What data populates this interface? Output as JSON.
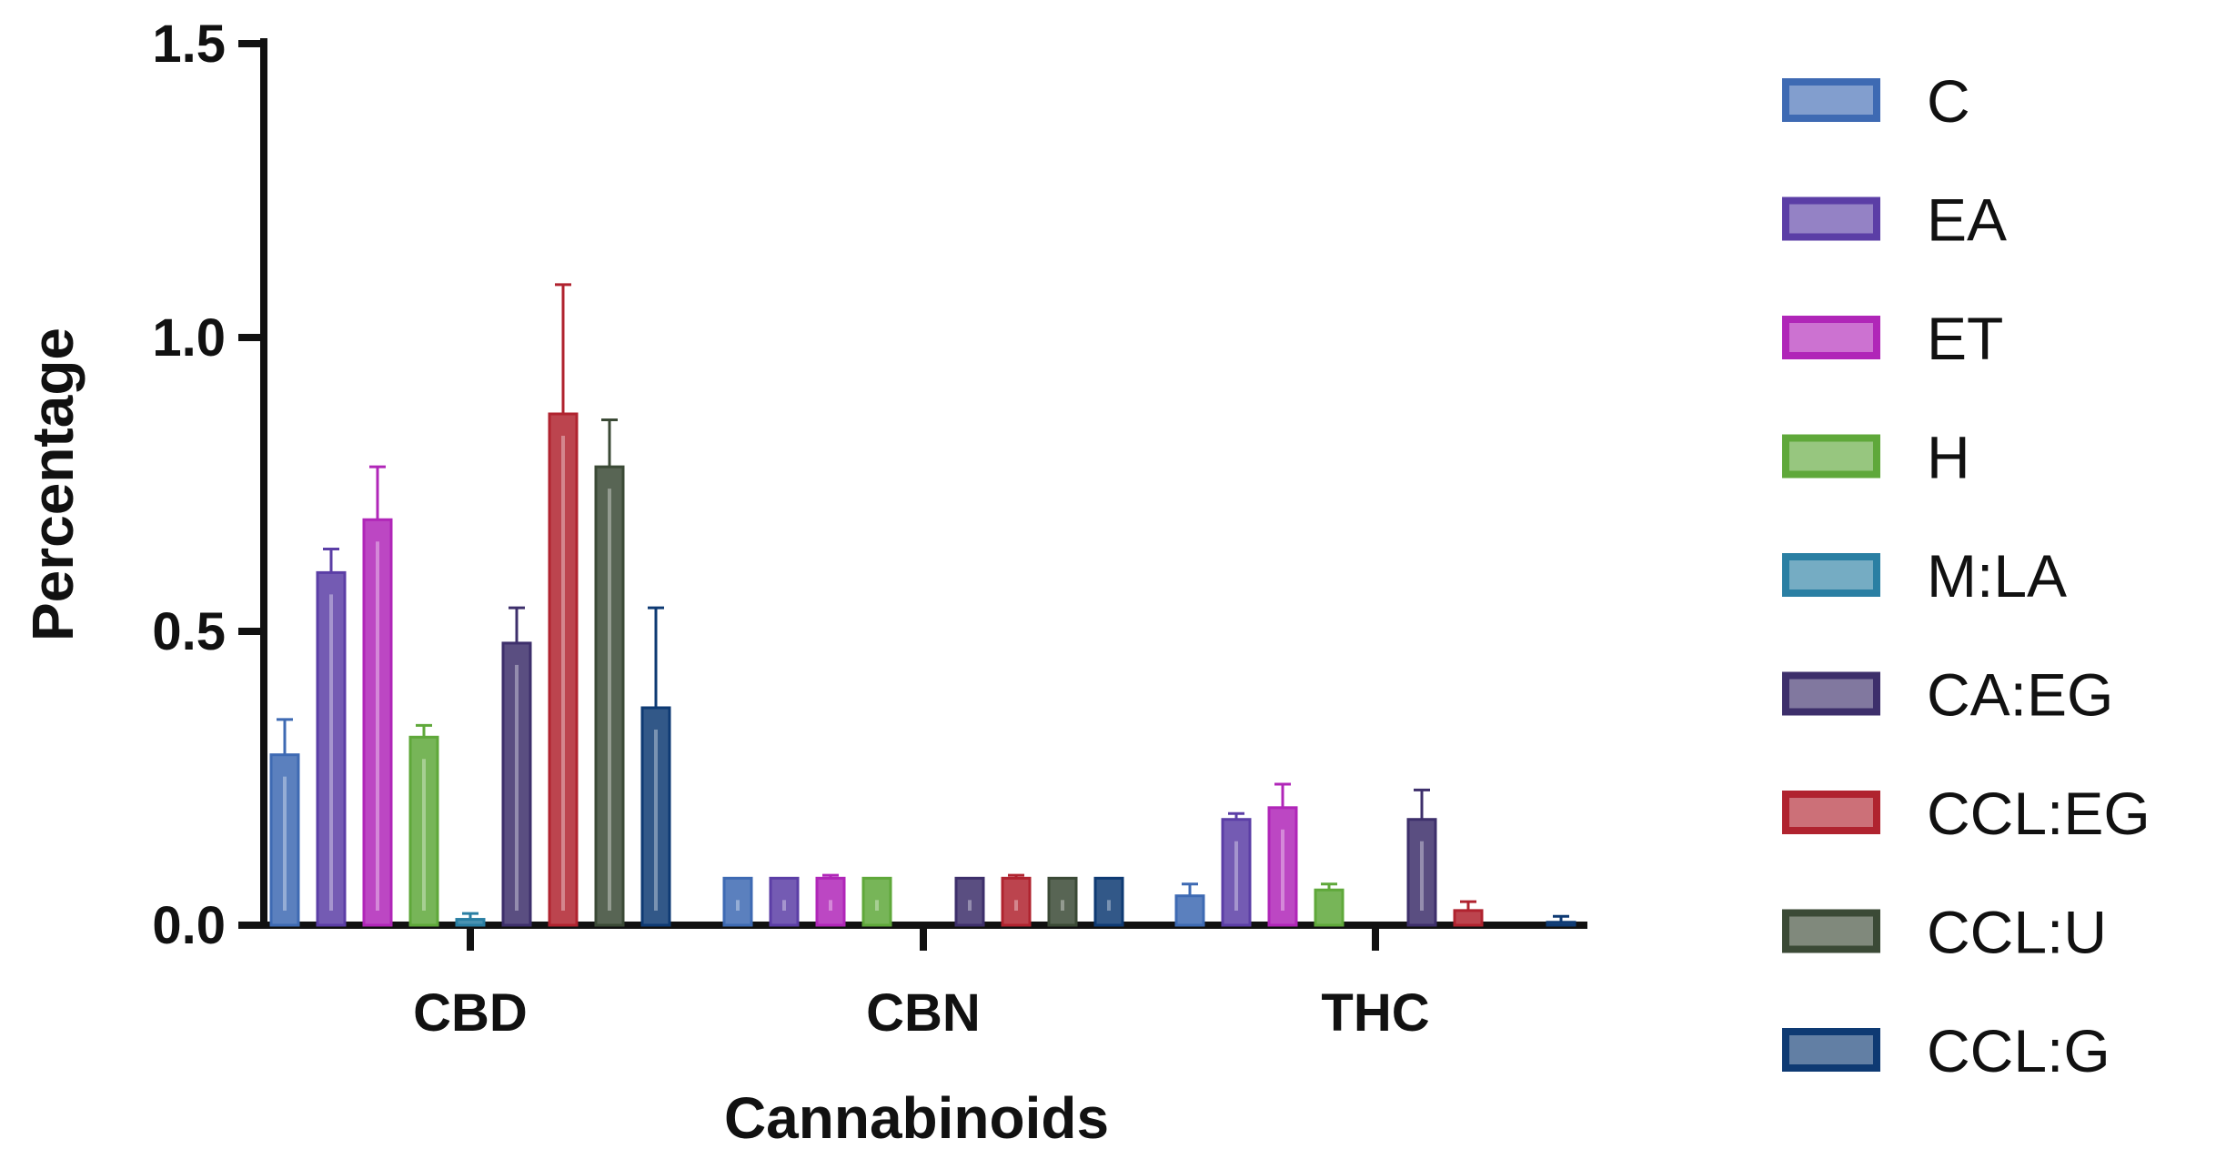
{
  "chart_data": {
    "type": "bar",
    "xlabel": "Cannabinoids",
    "ylabel": "Percentage",
    "ylim": [
      0,
      1.5
    ],
    "yticks": [
      "0.0",
      "0.5",
      "1.0",
      "1.5"
    ],
    "categories": [
      "CBD",
      "CBN",
      "THC"
    ],
    "grid": false,
    "legend_position": "right",
    "series": [
      {
        "name": "C",
        "color": "#3e6ab3",
        "values": [
          0.29,
          0.08,
          0.05
        ],
        "errors": [
          0.06,
          0.0,
          0.02
        ]
      },
      {
        "name": "EA",
        "color": "#5b3ea6",
        "values": [
          0.6,
          0.08,
          0.18
        ],
        "errors": [
          0.04,
          0.0,
          0.01
        ]
      },
      {
        "name": "ET",
        "color": "#b026b8",
        "values": [
          0.69,
          0.08,
          0.2
        ],
        "errors": [
          0.09,
          0.005,
          0.04
        ]
      },
      {
        "name": "H",
        "color": "#5fa83a",
        "values": [
          0.32,
          0.08,
          0.06
        ],
        "errors": [
          0.02,
          0.0,
          0.01
        ]
      },
      {
        "name": "M:LA",
        "color": "#2a7fa3",
        "values": [
          0.01,
          0.0,
          0.0
        ],
        "errors": [
          0.01,
          0.0,
          0.0
        ]
      },
      {
        "name": "CA:EG",
        "color": "#3d2f6b",
        "values": [
          0.48,
          0.08,
          0.18
        ],
        "errors": [
          0.06,
          0.0,
          0.05
        ]
      },
      {
        "name": "CCL:EG",
        "color": "#b0232f",
        "values": [
          0.87,
          0.08,
          0.025
        ],
        "errors": [
          0.22,
          0.005,
          0.015
        ]
      },
      {
        "name": "CCL:U",
        "color": "#3b4a36",
        "values": [
          0.78,
          0.08,
          0.0
        ],
        "errors": [
          0.08,
          0.0,
          0.0
        ]
      },
      {
        "name": "CCL:G",
        "color": "#0e3a73",
        "values": [
          0.37,
          0.08,
          0.005
        ],
        "errors": [
          0.17,
          0.0,
          0.01
        ]
      }
    ]
  }
}
